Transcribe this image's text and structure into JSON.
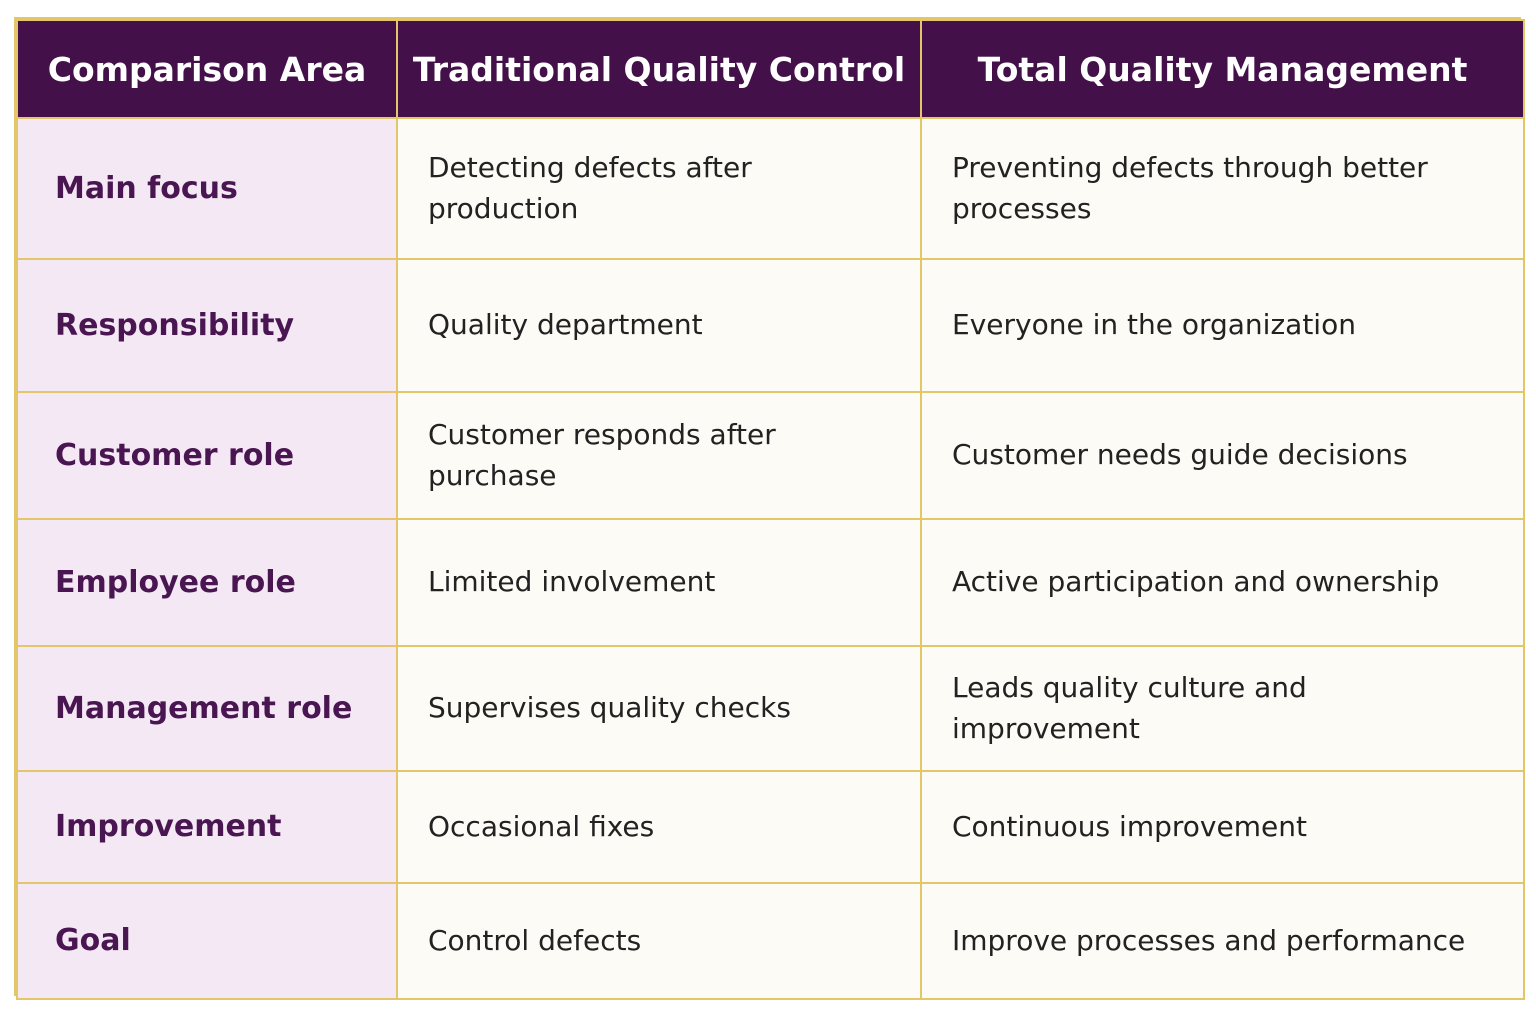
{
  "headers": [
    "Comparison Area",
    "Traditional Quality Control",
    "Total Quality Management"
  ],
  "rows": [
    {
      "area": "Main focus",
      "traditional": "Detecting defects after production",
      "tqm": "Preventing defects through better processes"
    },
    {
      "area": "Responsibility",
      "traditional": "Quality department",
      "tqm": "Everyone in the organization"
    },
    {
      "area": "Customer role",
      "traditional": "Customer responds after purchase",
      "tqm": "Customer needs guide decisions"
    },
    {
      "area": "Employee role",
      "traditional": "Limited involvement",
      "tqm": "Active participation and ownership"
    },
    {
      "area": "Management role",
      "traditional": "Supervises quality checks",
      "tqm": "Leads quality culture and improvement"
    },
    {
      "area": "Improvement",
      "traditional": "Occasional fixes",
      "tqm": "Continuous improvement"
    },
    {
      "area": "Goal",
      "traditional": "Control defects",
      "tqm": "Improve processes and performance"
    }
  ],
  "colors": {
    "header_bg": "#43104a",
    "header_text": "#ffffff",
    "area_bg": "#f4e8f5",
    "area_text": "#4a1652",
    "cell_bg": "#fdfbf5",
    "border": "#e3c66a"
  }
}
